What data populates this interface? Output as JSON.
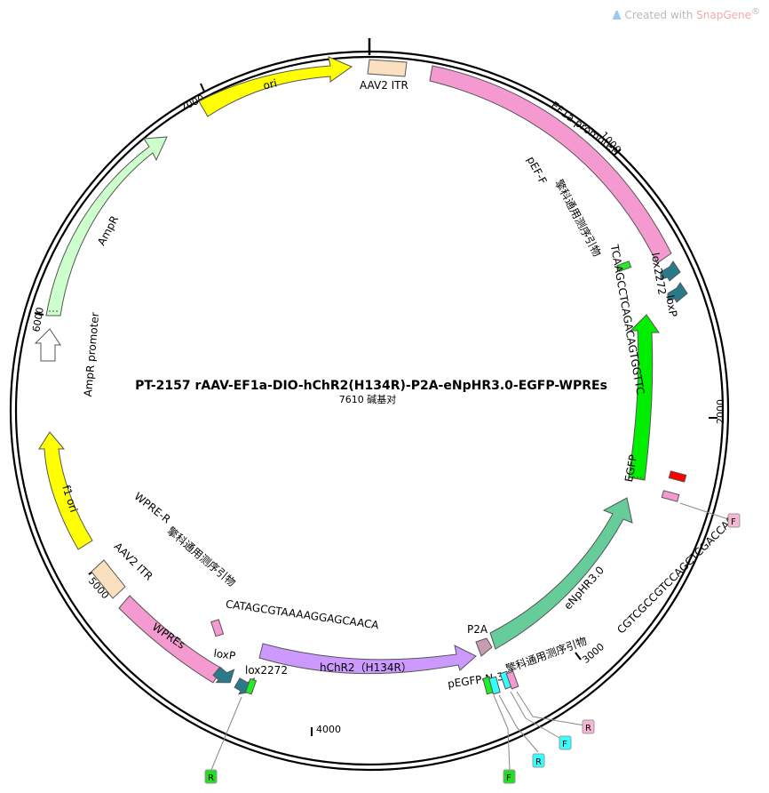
{
  "watermark": {
    "prefix": "Created with ",
    "brand": "SnapGene",
    "reg": "®",
    "icon": "snapgene-logo-icon"
  },
  "plasmid": {
    "name": "PT-2157  rAAV-EF1a-DIO-hChR2(H134R)-P2A-eNpHR3.0-EGFP-WPREs",
    "length_label": "7610 碱基对",
    "total_bp": 7610
  },
  "ticks": [
    {
      "bp": 1000,
      "label": "1000"
    },
    {
      "bp": 2000,
      "label": "2000"
    },
    {
      "bp": 3000,
      "label": "3000"
    },
    {
      "bp": 4000,
      "label": "4000"
    },
    {
      "bp": 5000,
      "label": "5000"
    },
    {
      "bp": 6000,
      "label": "6000"
    },
    {
      "bp": 7000,
      "label": "7000"
    }
  ],
  "labels": {
    "aav2_itr_top": "AAV2 ITR",
    "ori": "ori",
    "ef1a": "EF1a promoter",
    "ampr": "AmpR",
    "ampr_promoter": "AmpR promoter",
    "f1_ori": "f1 ori",
    "aav2_itr_bottom": "AAV2 ITR",
    "wpres": "WPREs",
    "loxp_left": "loxP",
    "lox2272_left": "lox2272",
    "hchr2": "hChR2（H134R）",
    "p2a": "P2A",
    "enphr": "eNpHR3.0",
    "egfp": "EGFP",
    "lox2272_right": "lox2272",
    "loxp_right": "loxP",
    "pef_f": "pEF-F",
    "pef_f_note": "擎科通用测序引物",
    "pef_f_seq": "TCAAGCCTCAGACAGTGGTTC",
    "pegfp_n3": "pEGFP-N-3'",
    "pegfp_n3_note": "擎科通用测序引物",
    "pegfp_n3_seq": "CGTCGCCGTCCAGCTCGACCAG",
    "wpre_r": "WPRE-R",
    "wpre_r_note": "擎科通用测序引物",
    "wpre_r_seq": "CATAGCGTAAAAGGAGCAACA"
  },
  "badges": [
    {
      "id": "F1",
      "text": "F",
      "color": "#f7b6d2"
    },
    {
      "id": "R1",
      "text": "R",
      "color": "#f7b6d2"
    },
    {
      "id": "F2",
      "text": "F",
      "color": "#33ffff"
    },
    {
      "id": "R2",
      "text": "R",
      "color": "#33ffff"
    },
    {
      "id": "F3",
      "text": "F",
      "color": "#22dd22"
    },
    {
      "id": "R3",
      "text": "R",
      "color": "#22dd22"
    }
  ],
  "colors": {
    "itr": "#fbe0c0",
    "ef1a": "#f59ad0",
    "ori": "#ffff00",
    "ampr": "#ccffcc",
    "ampr_promoter": "#ffffff",
    "f1_ori": "#ffff00",
    "wpres": "#f59ad0",
    "lox": "#2b7a8a",
    "hchr2": "#cc99ff",
    "p2a": "#c79bb0",
    "enphr": "#66cc99",
    "egfp": "#00ee00",
    "primer_pink": "#f59ad0",
    "primer_green": "#22ee22",
    "primer_cyan": "#33ffff",
    "primer_red": "#ff0000"
  }
}
